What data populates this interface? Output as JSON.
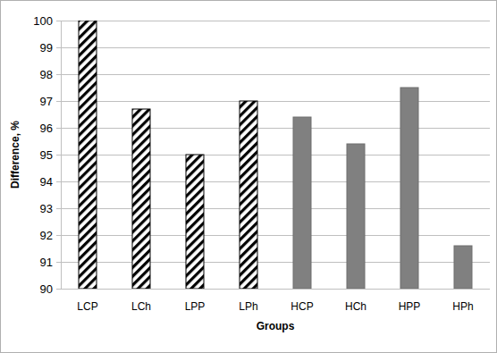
{
  "chart_data": {
    "type": "bar",
    "x_label": "Groups",
    "y_label": "Difference, %",
    "categories": [
      "LCP",
      "LCh",
      "LPP",
      "LPh",
      "HCP",
      "HCh",
      "HPP",
      "HPh"
    ],
    "values": [
      100,
      96.7,
      95,
      97,
      96.4,
      95.4,
      97.5,
      91.6
    ],
    "colors": [
      "#000000",
      "#000000",
      "#000000",
      "#000000",
      "#808080",
      "#808080",
      "#808080",
      "#808080"
    ],
    "ylim": [
      90,
      100
    ],
    "yticks": [
      90,
      91,
      92,
      93,
      94,
      95,
      96,
      97,
      98,
      99,
      100
    ],
    "grid": true
  }
}
